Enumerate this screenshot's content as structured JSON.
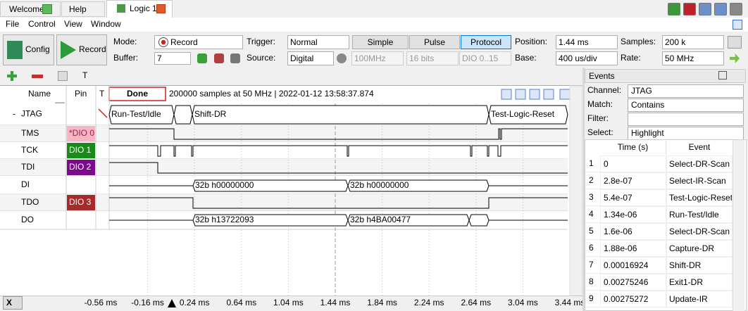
{
  "tabs": [
    "Welcome",
    "Help",
    "Logic 1"
  ],
  "menu": [
    "File",
    "Control",
    "View",
    "Window"
  ],
  "toolbar": {
    "config": "Config",
    "record": "Record",
    "mode_label": "Mode:",
    "mode": "Record",
    "buffer_label": "Buffer:",
    "buffer": "7",
    "trigger_label": "Trigger:",
    "trigger": "Normal",
    "simple": "Simple",
    "pulse": "Pulse",
    "protocol": "Protocol",
    "position_label": "Position:",
    "position": "1.44 ms",
    "samples_label": "Samples:",
    "samples": "200 k",
    "source_label": "Source:",
    "source": "Digital",
    "speed": "100MHz",
    "bits": "16 bits",
    "pins": "DIO 0..15",
    "base_label": "Base:",
    "base": "400 us/div",
    "rate_label": "Rate:",
    "rate": "50 MHz"
  },
  "toolbar2": {
    "text_tool": "T"
  },
  "signals": {
    "headers": [
      "Name",
      "Pin",
      "T"
    ],
    "status": "Done",
    "info": "200000 samples at 50 MHz | 2022-01-12 13:58:37.874",
    "rows": [
      {
        "collapse": "-",
        "name": "JTAG"
      },
      {
        "name": "TMS",
        "pin": "*DIO 0"
      },
      {
        "name": "TCK",
        "pin": "DIO 1"
      },
      {
        "name": "TDI",
        "pin": "DIO 2"
      },
      {
        "name": "DI"
      },
      {
        "name": "TDO",
        "pin": "DIO 3"
      },
      {
        "name": "DO"
      }
    ],
    "jtag_states": [
      "Run-Test/Idle",
      "Shift-DR",
      "Test-Logic-Reset"
    ],
    "di_words": [
      "32b h00000000",
      "32b h00000000"
    ],
    "do_words": [
      "32b h13722093",
      "32b h4BA00477"
    ]
  },
  "axis": {
    "x_button": "X",
    "labels": [
      "-0.56 ms",
      "-0.16 ms",
      "0.24 ms",
      "0.64 ms",
      "1.04 ms",
      "1.44 ms",
      "1.84 ms",
      "2.24 ms",
      "2.64 ms",
      "3.04 ms",
      "3.44 ms"
    ]
  },
  "events": {
    "title": "Events",
    "fields": [
      {
        "label": "Channel:",
        "value": "JTAG"
      },
      {
        "label": "Match:",
        "value": "Contains"
      },
      {
        "label": "Filter:"
      },
      {
        "label": "Select:",
        "value": "Highlight"
      }
    ],
    "columns": [
      "Time (s)",
      "Event"
    ],
    "rows": [
      [
        "1",
        "0",
        "Select-DR-Scan"
      ],
      [
        "2",
        "2.8e-07",
        "Select-IR-Scan"
      ],
      [
        "3",
        "5.4e-07",
        "Test-Logic-Reset"
      ],
      [
        "4",
        "1.34e-06",
        "Run-Test/Idle"
      ],
      [
        "5",
        "1.6e-06",
        "Select-DR-Scan"
      ],
      [
        "6",
        "1.88e-06",
        "Capture-DR"
      ],
      [
        "7",
        "0.00016924",
        "Shift-DR"
      ],
      [
        "8",
        "0.00275246",
        "Exit1-DR"
      ],
      [
        "9",
        "0.00275272",
        "Update-IR"
      ]
    ]
  }
}
